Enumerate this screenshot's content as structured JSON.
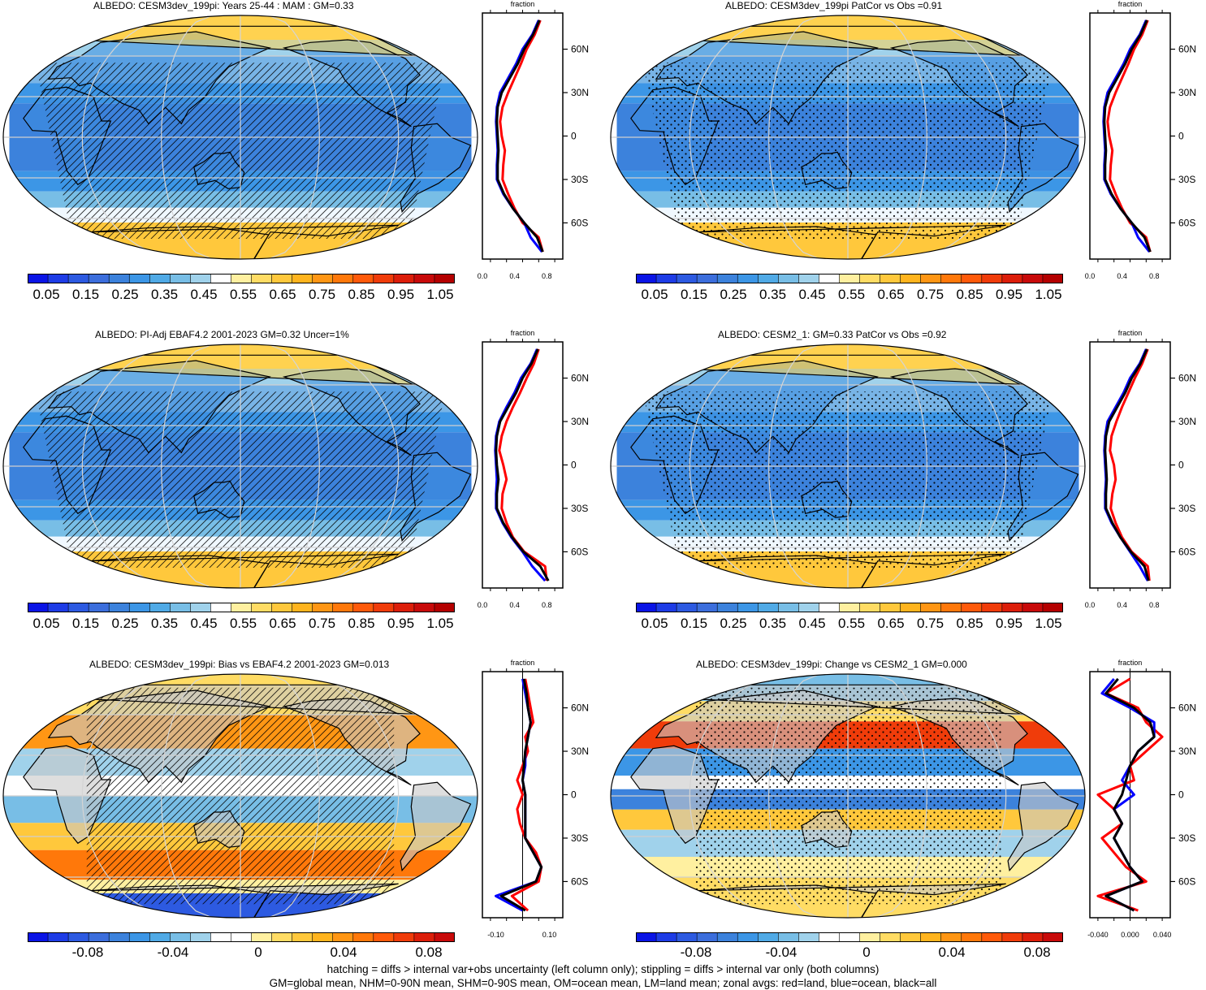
{
  "panels": [
    {
      "id": "p1",
      "title": "ALBEDO: CESM3dev_199pi: Years 25-44 : MAM : GM=0.33",
      "kind": "abs",
      "hatch": "lines"
    },
    {
      "id": "p2",
      "title": "ALBEDO: CESM3dev_199pi PatCor vs Obs =0.91",
      "kind": "abs",
      "hatch": "dots"
    },
    {
      "id": "p3",
      "title": "ALBEDO: PI-Adj EBAF4.2 2001-2023 GM=0.32 Uncer=1%",
      "kind": "abs",
      "hatch": "lines"
    },
    {
      "id": "p4",
      "title": "ALBEDO: CESM2_1: GM=0.33 PatCor vs Obs =0.92",
      "kind": "abs",
      "hatch": "dots"
    },
    {
      "id": "p5",
      "title": "ALBEDO: CESM3dev_199pi: Bias vs EBAF4.2 2001-2023 GM=0.013",
      "kind": "diff",
      "hatch": "lines"
    },
    {
      "id": "p6",
      "title": "ALBEDO: CESM3dev_199pi: Change vs CESM2_1 GM=0.000",
      "kind": "diff",
      "hatch": "dots"
    }
  ],
  "colorbars": {
    "abs": {
      "colors": [
        "#0a14e6",
        "#1e3ce6",
        "#2d5ae1",
        "#3c6edc",
        "#3c82dc",
        "#3c96e6",
        "#50aae6",
        "#78bee6",
        "#a0d2eb",
        "#ffffff",
        "#fff0a0",
        "#ffdc64",
        "#ffc83c",
        "#ffb41e",
        "#ff9614",
        "#ff780a",
        "#ff5a0a",
        "#f03c0a",
        "#dc1e0a",
        "#c80a0a",
        "#b40000"
      ],
      "labels": [
        "0.05",
        "0.15",
        "0.25",
        "0.35",
        "0.45",
        "0.55",
        "0.65",
        "0.75",
        "0.85",
        "0.95",
        "1.05"
      ]
    },
    "diff": {
      "colors": [
        "#0a14e6",
        "#1e3ce6",
        "#2d5ae1",
        "#3c6edc",
        "#3c82dc",
        "#3c96e6",
        "#50aae6",
        "#78bee6",
        "#a0d2eb",
        "#ffffff",
        "#ffffff",
        "#fff0a0",
        "#ffdc64",
        "#ffc83c",
        "#ffb41e",
        "#ff9614",
        "#ff780a",
        "#ff5a0a",
        "#f03c0a",
        "#dc1e0a",
        "#c80a0a"
      ],
      "labels": [
        "-0.08",
        "-0.04",
        "0",
        "0.04",
        "0.08"
      ]
    }
  },
  "zonal": {
    "axis_title": "fraction",
    "lat_labels": [
      "60N",
      "30N",
      "0",
      "30S",
      "60S"
    ],
    "abs_x_labels": [
      "0.0",
      "0.4",
      "0.8"
    ],
    "bias_x_labels": [
      "-0.10",
      "0.10"
    ],
    "change_x_labels": [
      "-0.040",
      "0.000",
      "0.040"
    ],
    "series_colors": {
      "land": "#ff0000",
      "ocean": "#0000ff",
      "all": "#000000"
    }
  },
  "chart_data": [
    {
      "type": "line",
      "title": "ALBEDO: CESM3dev_199pi: Years 25-44 : MAM : GM=0.33",
      "xlabel": "fraction",
      "xlim": [
        0,
        1
      ],
      "ylim": [
        -90,
        90
      ],
      "y": [
        80,
        70,
        60,
        50,
        40,
        30,
        20,
        10,
        0,
        -10,
        -20,
        -30,
        -40,
        -50,
        -60,
        -70,
        -80
      ],
      "series": [
        {
          "name": "land",
          "values": [
            0.72,
            0.65,
            0.55,
            0.48,
            0.4,
            0.32,
            0.25,
            0.22,
            0.24,
            0.28,
            0.26,
            0.25,
            0.32,
            0.4,
            0.5,
            0.7,
            0.75
          ]
        },
        {
          "name": "ocean",
          "values": [
            0.7,
            0.62,
            0.5,
            0.42,
            0.32,
            0.22,
            0.18,
            0.17,
            0.18,
            0.19,
            0.18,
            0.18,
            0.26,
            0.38,
            0.52,
            0.6,
            0.74
          ]
        },
        {
          "name": "all",
          "values": [
            0.71,
            0.63,
            0.52,
            0.44,
            0.34,
            0.24,
            0.19,
            0.18,
            0.19,
            0.2,
            0.19,
            0.19,
            0.27,
            0.38,
            0.52,
            0.68,
            0.75
          ]
        }
      ]
    },
    {
      "type": "line",
      "title": "ALBEDO: CESM3dev_199pi PatCor vs Obs =0.91",
      "xlabel": "fraction",
      "xlim": [
        0,
        1
      ],
      "ylim": [
        -90,
        90
      ],
      "y": [
        80,
        70,
        60,
        50,
        40,
        30,
        20,
        10,
        0,
        -10,
        -20,
        -30,
        -40,
        -50,
        -60,
        -70,
        -80
      ],
      "series": [
        {
          "name": "land",
          "values": [
            0.72,
            0.65,
            0.55,
            0.48,
            0.4,
            0.32,
            0.25,
            0.22,
            0.24,
            0.28,
            0.26,
            0.25,
            0.32,
            0.4,
            0.5,
            0.7,
            0.75
          ]
        },
        {
          "name": "ocean",
          "values": [
            0.7,
            0.62,
            0.5,
            0.42,
            0.32,
            0.22,
            0.18,
            0.17,
            0.18,
            0.19,
            0.18,
            0.18,
            0.26,
            0.38,
            0.52,
            0.6,
            0.74
          ]
        },
        {
          "name": "all",
          "values": [
            0.71,
            0.63,
            0.52,
            0.44,
            0.34,
            0.24,
            0.19,
            0.18,
            0.19,
            0.2,
            0.19,
            0.19,
            0.27,
            0.38,
            0.52,
            0.68,
            0.75
          ]
        }
      ]
    },
    {
      "type": "line",
      "title": "ALBEDO: PI-Adj EBAF4.2 2001-2023 GM=0.32 Uncer=1%",
      "xlabel": "fraction",
      "xlim": [
        0,
        1
      ],
      "ylim": [
        -90,
        90
      ],
      "y": [
        80,
        70,
        60,
        50,
        40,
        30,
        20,
        10,
        0,
        -10,
        -20,
        -30,
        -40,
        -50,
        -60,
        -70,
        -80
      ],
      "series": [
        {
          "name": "land",
          "values": [
            0.7,
            0.64,
            0.55,
            0.47,
            0.38,
            0.3,
            0.24,
            0.21,
            0.26,
            0.3,
            0.25,
            0.24,
            0.3,
            0.38,
            0.52,
            0.78,
            0.8
          ]
        },
        {
          "name": "ocean",
          "values": [
            0.68,
            0.6,
            0.48,
            0.4,
            0.3,
            0.21,
            0.17,
            0.16,
            0.17,
            0.18,
            0.17,
            0.17,
            0.25,
            0.36,
            0.5,
            0.62,
            0.78
          ]
        },
        {
          "name": "all",
          "values": [
            0.69,
            0.61,
            0.5,
            0.42,
            0.32,
            0.22,
            0.18,
            0.17,
            0.18,
            0.2,
            0.18,
            0.18,
            0.26,
            0.37,
            0.51,
            0.72,
            0.82
          ]
        }
      ]
    },
    {
      "type": "line",
      "title": "ALBEDO: CESM2_1: GM=0.33 PatCor vs Obs =0.92",
      "xlabel": "fraction",
      "xlim": [
        0,
        1
      ],
      "ylim": [
        -90,
        90
      ],
      "y": [
        80,
        70,
        60,
        50,
        40,
        30,
        20,
        10,
        0,
        -10,
        -20,
        -30,
        -40,
        -50,
        -60,
        -70,
        -80
      ],
      "series": [
        {
          "name": "land",
          "values": [
            0.72,
            0.65,
            0.56,
            0.48,
            0.4,
            0.33,
            0.27,
            0.25,
            0.3,
            0.32,
            0.28,
            0.26,
            0.32,
            0.4,
            0.52,
            0.72,
            0.74
          ]
        },
        {
          "name": "ocean",
          "values": [
            0.7,
            0.62,
            0.5,
            0.42,
            0.32,
            0.22,
            0.19,
            0.18,
            0.19,
            0.2,
            0.19,
            0.19,
            0.27,
            0.38,
            0.5,
            0.62,
            0.72
          ]
        },
        {
          "name": "all",
          "values": [
            0.71,
            0.63,
            0.52,
            0.44,
            0.34,
            0.24,
            0.2,
            0.19,
            0.2,
            0.21,
            0.2,
            0.2,
            0.28,
            0.38,
            0.51,
            0.68,
            0.73
          ]
        }
      ]
    },
    {
      "type": "line",
      "title": "ALBEDO: CESM3dev_199pi: Bias vs EBAF4.2 2001-2023 GM=0.013",
      "xlabel": "fraction",
      "xlim": [
        -0.15,
        0.15
      ],
      "ylim": [
        -90,
        90
      ],
      "y": [
        80,
        70,
        60,
        50,
        40,
        30,
        20,
        10,
        0,
        -10,
        -20,
        -30,
        -40,
        -50,
        -60,
        -70,
        -80
      ],
      "series": [
        {
          "name": "land",
          "values": [
            0.01,
            0.02,
            0.03,
            0.04,
            0.01,
            0.02,
            0.0,
            -0.02,
            0.0,
            -0.02,
            -0.01,
            0.01,
            0.05,
            0.07,
            0.06,
            -0.04,
            0.02
          ]
        },
        {
          "name": "ocean",
          "values": [
            0.0,
            0.01,
            0.02,
            0.03,
            0.02,
            0.01,
            0.01,
            0.0,
            0.01,
            0.01,
            0.01,
            0.01,
            0.04,
            0.07,
            0.05,
            -0.1,
            0.0
          ]
        },
        {
          "name": "all",
          "values": [
            0.005,
            0.015,
            0.02,
            0.03,
            0.02,
            0.01,
            0.005,
            0.0,
            0.01,
            0.01,
            0.01,
            0.01,
            0.04,
            0.07,
            0.05,
            -0.08,
            0.01
          ]
        }
      ]
    },
    {
      "type": "line",
      "title": "ALBEDO: CESM3dev_199pi: Change vs CESM2_1 GM=0.000",
      "xlabel": "fraction",
      "xlim": [
        -0.05,
        0.05
      ],
      "ylim": [
        -90,
        90
      ],
      "y": [
        80,
        70,
        60,
        50,
        40,
        30,
        20,
        10,
        0,
        -10,
        -20,
        -30,
        -40,
        -50,
        -60,
        -70,
        -80
      ],
      "series": [
        {
          "name": "land",
          "values": [
            0.0,
            -0.03,
            0.01,
            0.02,
            0.04,
            0.02,
            0.0,
            0.005,
            -0.04,
            -0.02,
            -0.01,
            -0.035,
            -0.02,
            -0.005,
            0.02,
            -0.04,
            0.01
          ]
        },
        {
          "name": "ocean",
          "values": [
            -0.02,
            -0.035,
            0.0,
            0.03,
            0.03,
            0.01,
            0.0,
            -0.01,
            0.005,
            -0.02,
            -0.01,
            -0.02,
            -0.01,
            0.0,
            0.015,
            -0.03,
            0.005
          ]
        },
        {
          "name": "all",
          "values": [
            -0.015,
            -0.03,
            0.005,
            0.025,
            0.03,
            0.01,
            0.0,
            -0.005,
            -0.01,
            -0.02,
            -0.01,
            -0.02,
            -0.01,
            0.0,
            0.015,
            -0.03,
            0.005
          ]
        }
      ]
    }
  ],
  "footer": {
    "line1": "hatching = diffs > internal var+obs uncertainty (left column only); stippling = diffs > internal var only (both columns)",
    "line2": "GM=global mean, NHM=0-90N mean, SHM=0-90S mean, OM=ocean mean, LM=land mean; zonal avgs: red=land, blue=ocean, black=all"
  }
}
